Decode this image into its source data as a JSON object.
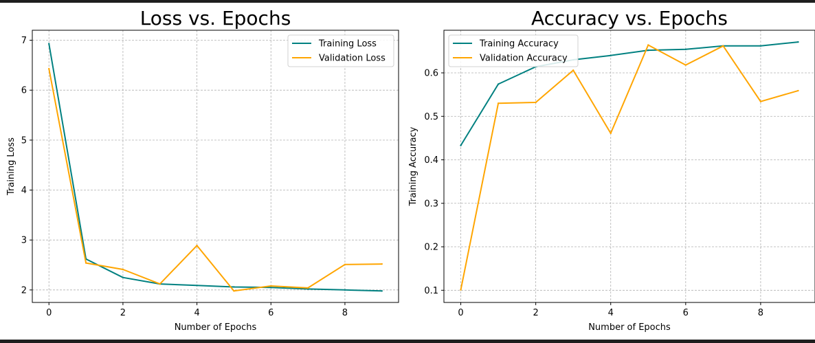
{
  "chart_data": [
    {
      "type": "line",
      "title": "Loss vs. Epochs",
      "xlabel": "Number of Epochs",
      "ylabel": "Training Loss",
      "xlim": [
        -0.45,
        9.45
      ],
      "ylim": [
        1.75,
        7.2
      ],
      "xticks": [
        0,
        2,
        4,
        6,
        8
      ],
      "yticks": [
        2,
        3,
        4,
        5,
        6,
        7
      ],
      "grid": true,
      "legend_position": "upper right",
      "x": [
        0,
        1,
        2,
        3,
        4,
        5,
        6,
        7,
        8,
        9
      ],
      "series": [
        {
          "name": "Training Loss",
          "color": "#008080",
          "values": [
            6.93,
            2.62,
            2.25,
            2.12,
            2.09,
            2.06,
            2.05,
            2.02,
            2.0,
            1.98
          ]
        },
        {
          "name": "Validation Loss",
          "color": "#ffa500",
          "values": [
            6.43,
            2.54,
            2.41,
            2.12,
            2.89,
            1.98,
            2.08,
            2.04,
            2.51,
            2.52
          ]
        }
      ]
    },
    {
      "type": "line",
      "title": "Accuracy vs. Epochs",
      "xlabel": "Number of Epochs",
      "ylabel": "Training Accuracy",
      "xlim": [
        -0.45,
        9.45
      ],
      "ylim": [
        0.072,
        0.698
      ],
      "xticks": [
        0,
        2,
        4,
        6,
        8
      ],
      "yticks": [
        0.1,
        0.2,
        0.3,
        0.4,
        0.5,
        0.6
      ],
      "grid": true,
      "legend_position": "upper left",
      "x": [
        0,
        1,
        2,
        3,
        4,
        5,
        6,
        7,
        8,
        9
      ],
      "series": [
        {
          "name": "Training Accuracy",
          "color": "#008080",
          "values": [
            0.433,
            0.574,
            0.614,
            0.63,
            0.64,
            0.652,
            0.654,
            0.662,
            0.662,
            0.671
          ]
        },
        {
          "name": "Validation Accuracy",
          "color": "#ffa500",
          "values": [
            0.101,
            0.53,
            0.532,
            0.606,
            0.461,
            0.664,
            0.618,
            0.662,
            0.534,
            0.559
          ]
        }
      ]
    }
  ]
}
